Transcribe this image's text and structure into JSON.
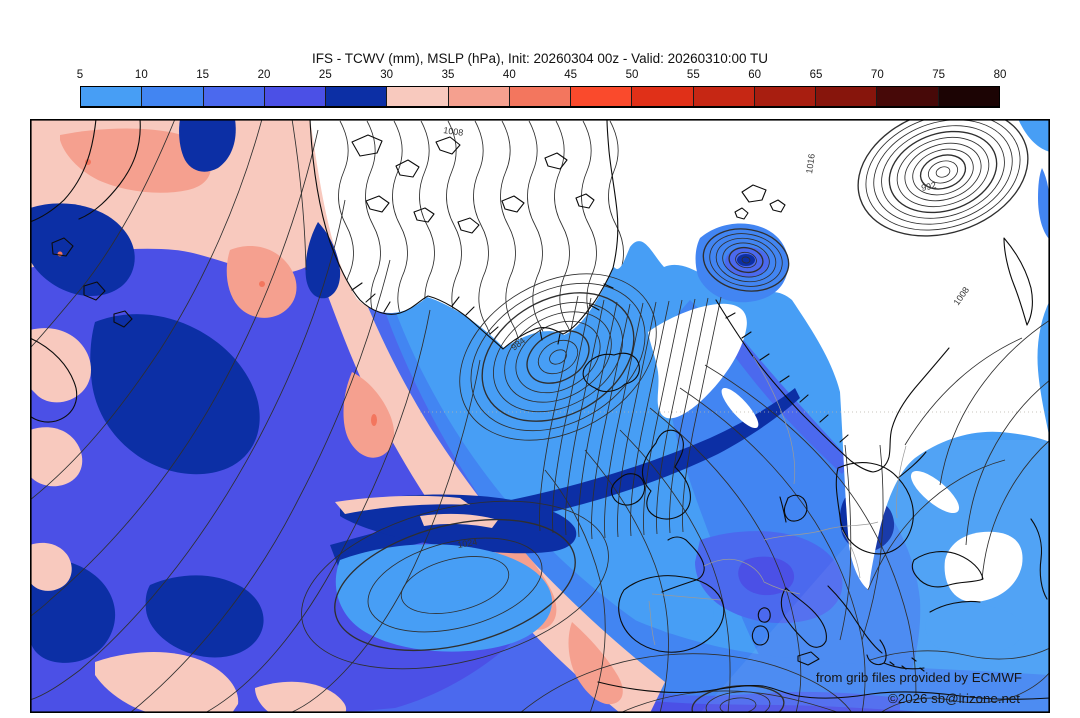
{
  "title": "IFS - TCWV (mm), MSLP (hPa), Init: 20260304 00z - Valid: 20260310:00 TU",
  "colorbar": {
    "ticks": [
      "5",
      "10",
      "15",
      "20",
      "25",
      "30",
      "35",
      "40",
      "45",
      "50",
      "55",
      "60",
      "65",
      "70",
      "75",
      "80"
    ],
    "colors": [
      "#479ef5",
      "#4285f2",
      "#4b69ee",
      "#4b50e6",
      "#0c2fa5",
      "#f8c9be",
      "#f5a08f",
      "#f3765e",
      "#fa4a2c",
      "#e03018",
      "#c62714",
      "#a81e10",
      "#87150c",
      "#470908",
      "#1c0404"
    ]
  },
  "map": {
    "attribution_line1": "from grib files provided by ECMWF",
    "attribution_line2": "©2026 sb@irizone.net",
    "pressure_labels": [
      {
        "text": "1008"
      },
      {
        "text": "1016"
      },
      {
        "text": "992"
      },
      {
        "text": "984"
      },
      {
        "text": "1024"
      },
      {
        "text": "1008"
      }
    ],
    "palette": {
      "tcwv_5_10": "#479ef5",
      "tcwv_10_15": "#4285f2",
      "tcwv_15_20": "#4b69ee",
      "tcwv_20_25": "#4b50e6",
      "tcwv_25_30": "#0c2fa5",
      "tcwv_30_35": "#f8c9be",
      "tcwv_35_40": "#f5a08f",
      "tcwv_40_45": "#f3765e",
      "contour_line": "#2f2f2f",
      "coastline": "#0c0c0c",
      "dry_area": "#ffffff"
    }
  }
}
